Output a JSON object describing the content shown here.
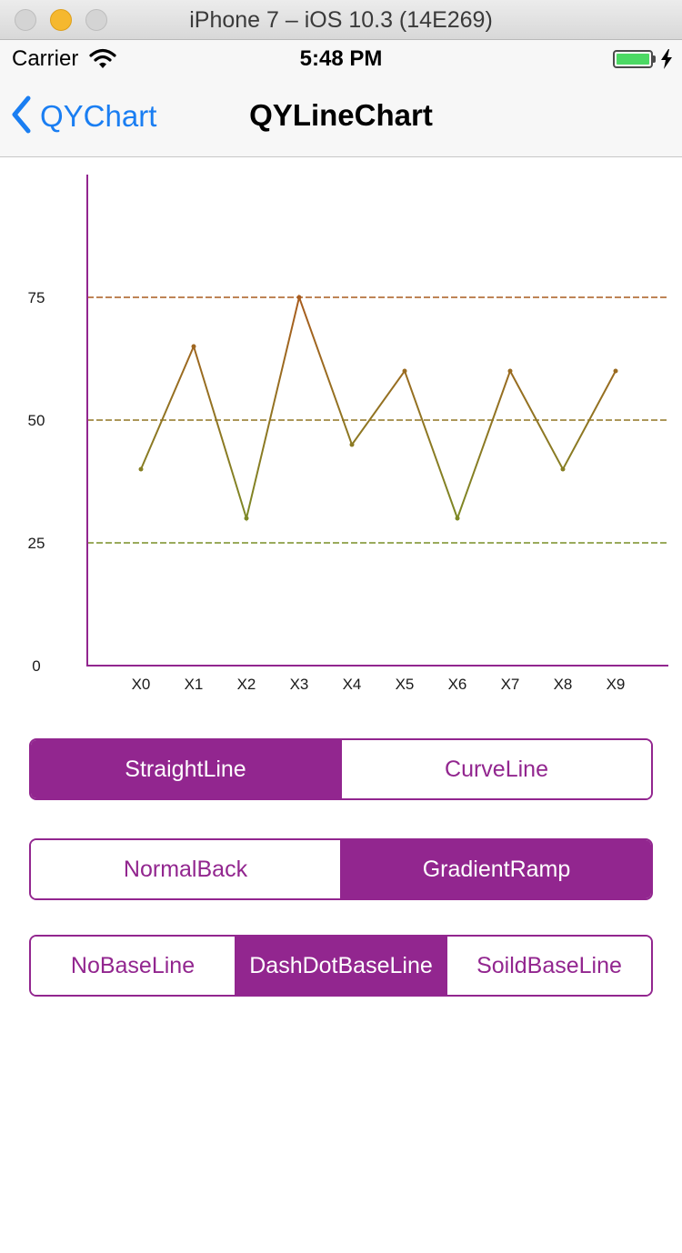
{
  "window": {
    "title": "iPhone 7 – iOS 10.3 (14E269)"
  },
  "status_bar": {
    "carrier": "Carrier",
    "time": "5:48 PM",
    "battery_level": 1.0,
    "battery_color": "#4cd964"
  },
  "nav": {
    "back_label": "QYChart",
    "title": "QYLineChart"
  },
  "colors": {
    "accent": "#92268f",
    "ios_blue": "#1a7ef2",
    "line_low": "#5fa52a",
    "line_high": "#c2441a"
  },
  "chart_data": {
    "type": "line",
    "categories": [
      "X0",
      "X1",
      "X2",
      "X3",
      "X4",
      "X5",
      "X6",
      "X7",
      "X8",
      "X9"
    ],
    "values": [
      40,
      65,
      30,
      75,
      45,
      60,
      30,
      60,
      40,
      60
    ],
    "yticks": [
      "0",
      "25",
      "50",
      "75"
    ],
    "ylim": [
      0,
      100
    ],
    "baselines": [
      25,
      50,
      75
    ],
    "baseline_style": "dashed",
    "line_style": "straight",
    "gradient": true,
    "axis_color": "#92268f",
    "grid": false
  },
  "controls": {
    "line_type": {
      "options": [
        "StraightLine",
        "CurveLine"
      ],
      "selected": 0
    },
    "background": {
      "options": [
        "NormalBack",
        "GradientRamp"
      ],
      "selected": 1
    },
    "baseline": {
      "options": [
        "NoBaseLine",
        "DashDotBaseLine",
        "SoildBaseLine"
      ],
      "selected": 1
    }
  }
}
